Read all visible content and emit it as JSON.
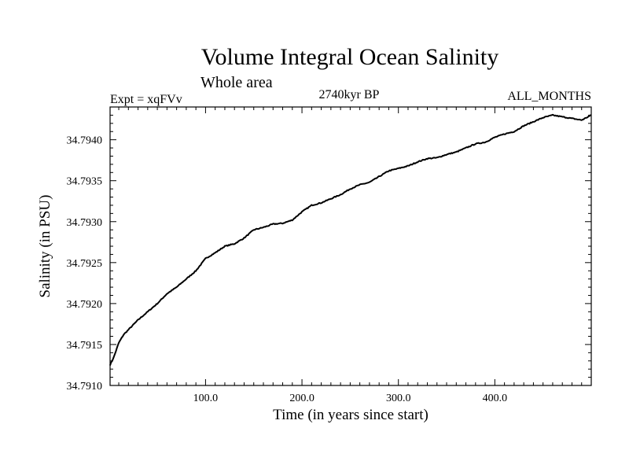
{
  "chart_data": {
    "type": "line",
    "title": "Volume Integral Ocean Salinity",
    "subtitle": "Whole area",
    "header_left": "Expt = xqFVv",
    "header_center": "2740kyr BP",
    "header_right": "ALL_MONTHS",
    "xlabel": "Time (in years since start)",
    "ylabel": "Salinity (in PSU)",
    "xlim": [
      1,
      500
    ],
    "ylim": [
      34.791,
      34.7944
    ],
    "x_ticks": [
      100,
      200,
      300,
      400
    ],
    "x_tick_labels": [
      "100.0",
      "200.0",
      "300.0",
      "400.0"
    ],
    "y_ticks": [
      34.791,
      34.7915,
      34.792,
      34.7925,
      34.793,
      34.7935,
      34.794
    ],
    "y_tick_labels": [
      "34.7910",
      "34.7915",
      "34.7920",
      "34.7925",
      "34.7930",
      "34.7935",
      "34.7940"
    ],
    "grid": false,
    "series": [
      {
        "name": "salinity",
        "x": [
          1,
          5,
          10,
          15,
          20,
          30,
          40,
          50,
          60,
          70,
          80,
          90,
          100,
          110,
          120,
          130,
          140,
          150,
          160,
          170,
          180,
          190,
          200,
          210,
          220,
          230,
          240,
          250,
          260,
          270,
          280,
          290,
          300,
          310,
          320,
          330,
          340,
          350,
          360,
          370,
          380,
          390,
          400,
          410,
          420,
          430,
          440,
          450,
          460,
          470,
          480,
          490,
          500
        ],
        "y": [
          34.79125,
          34.79135,
          34.79152,
          34.79162,
          34.79168,
          34.7918,
          34.7919,
          34.792,
          34.79212,
          34.7922,
          34.7923,
          34.7924,
          34.79255,
          34.79262,
          34.7927,
          34.79273,
          34.7928,
          34.7929,
          34.79293,
          34.79297,
          34.79298,
          34.79302,
          34.79312,
          34.7932,
          34.79323,
          34.79328,
          34.79333,
          34.7934,
          34.79345,
          34.79348,
          34.79355,
          34.79362,
          34.79365,
          34.79368,
          34.79373,
          34.79377,
          34.79378,
          34.79382,
          34.79385,
          34.7939,
          34.79395,
          34.79397,
          34.79403,
          34.79407,
          34.7941,
          34.79417,
          34.79422,
          34.79427,
          34.7943,
          34.79428,
          34.79426,
          34.79424,
          34.7943
        ],
        "color": "#000000"
      }
    ]
  }
}
